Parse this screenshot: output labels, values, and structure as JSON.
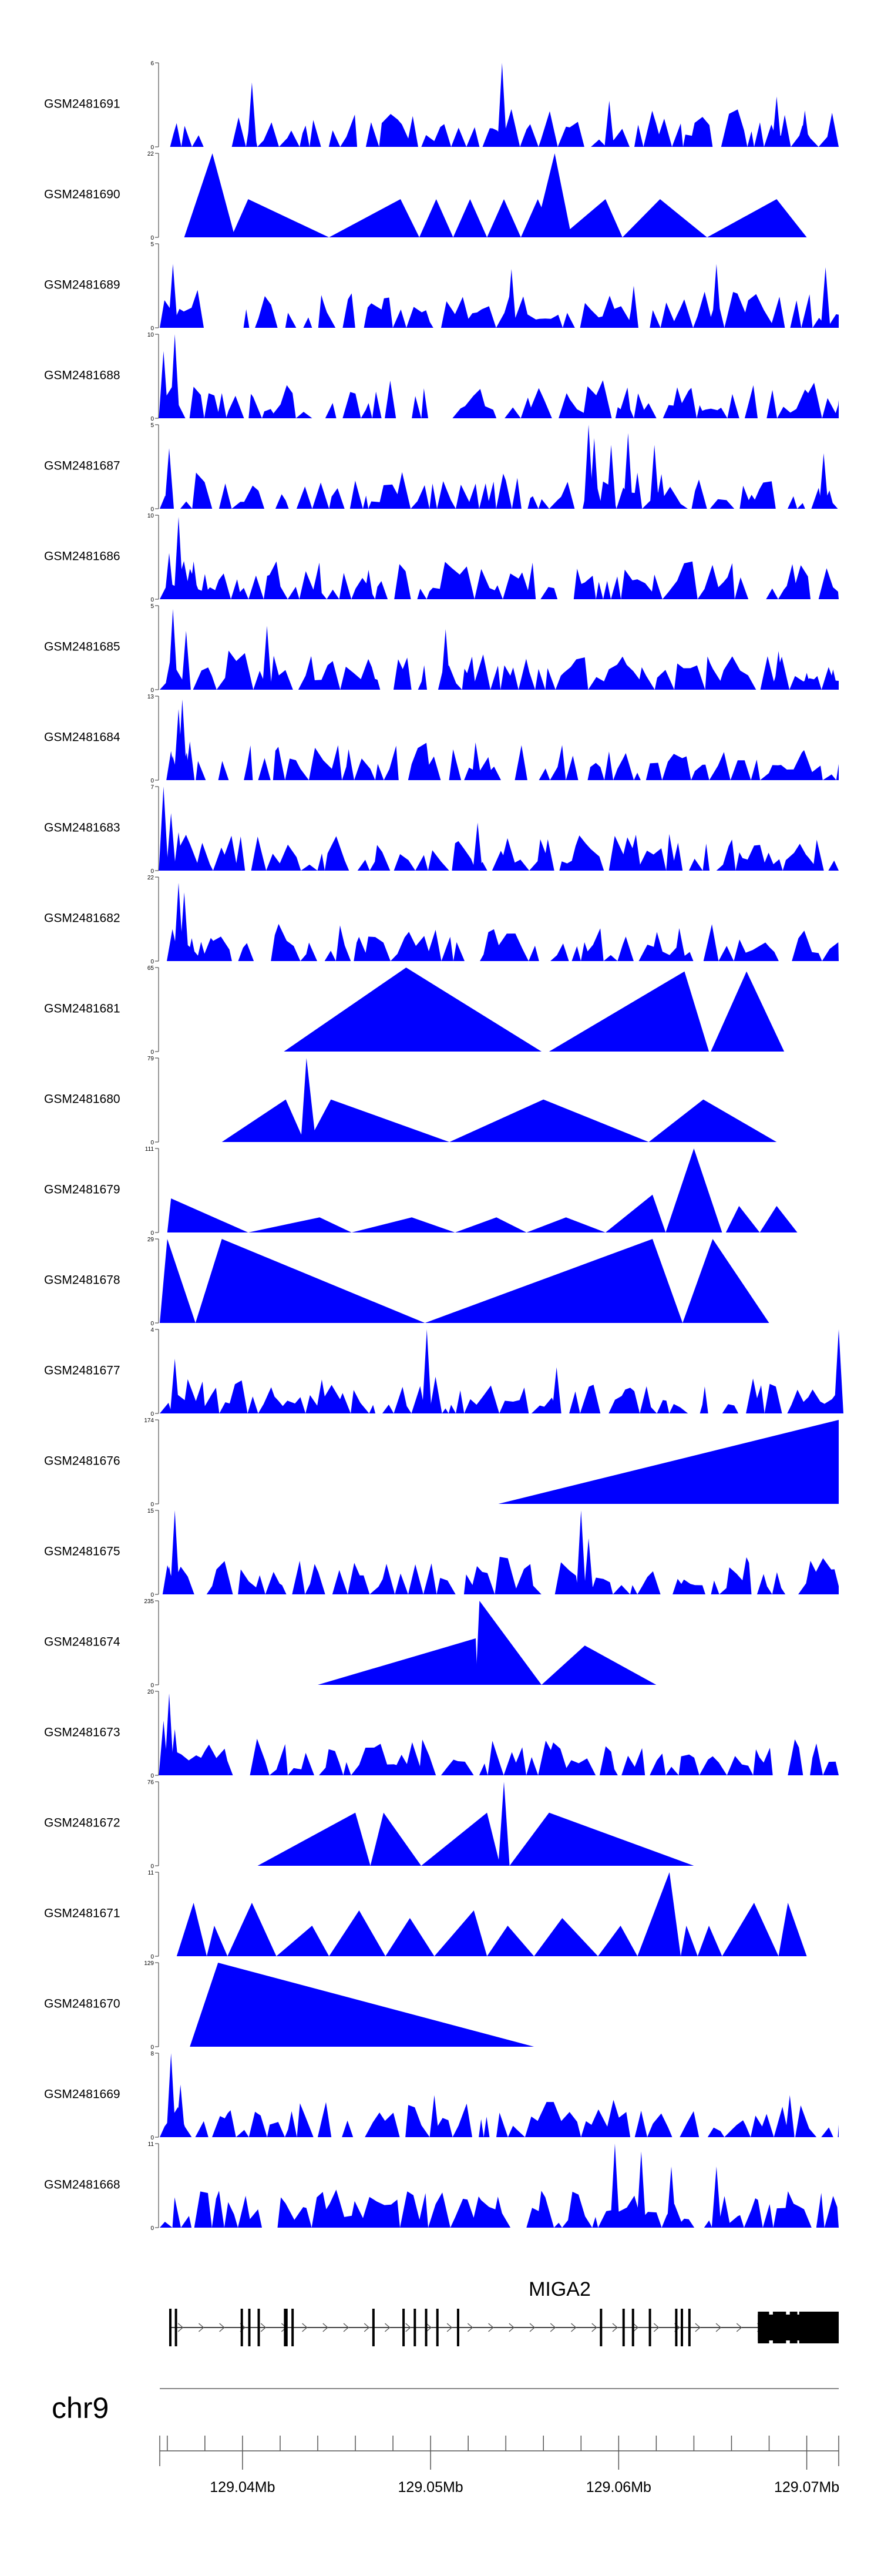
{
  "chart_data": {
    "type": "area",
    "chromosome": "chr9",
    "x_range_mb": [
      129.0356,
      129.0717
    ],
    "x_ticks": [
      "129.04Mb",
      "129.05Mb",
      "129.06Mb",
      "129.07Mb"
    ],
    "x_tick_values": [
      129.04,
      129.05,
      129.06,
      129.07
    ],
    "minor_tick_step_mb": 0.002,
    "colors": {
      "fill": "#0000ff",
      "axis": "#555555",
      "gene": "#000000"
    },
    "series": [
      {
        "name": "GSM2481691",
        "ymax": 6,
        "y0": "0",
        "ymaxLabel": "6",
        "style": "noise",
        "peaks": [
          [
            129.0365,
            1.4
          ],
          [
            129.0405,
            4.6
          ],
          [
            129.0538,
            6.0
          ],
          [
            129.0595,
            3.3
          ],
          [
            129.0684,
            3.6
          ],
          [
            129.0699,
            2.6
          ]
        ]
      },
      {
        "name": "GSM2481690",
        "ymax": 22,
        "y0": "0",
        "ymaxLabel": "22",
        "style": "tri",
        "peaks": [
          [
            129.0369,
            129.0384,
            129.0396,
            22
          ],
          [
            129.0394,
            129.0403,
            129.0446,
            10
          ],
          [
            129.0446,
            129.0484,
            129.0494,
            10
          ],
          [
            129.0494,
            129.0503,
            129.0512,
            10
          ],
          [
            129.0512,
            129.0521,
            129.053,
            10
          ],
          [
            129.053,
            129.0539,
            129.0548,
            10
          ],
          [
            129.0548,
            129.0557,
            129.0566,
            10
          ],
          [
            129.0555,
            129.0566,
            129.0575,
            22
          ],
          [
            129.0569,
            129.0593,
            129.0602,
            10
          ],
          [
            129.0602,
            129.0622,
            129.0647,
            10
          ],
          [
            129.0647,
            129.0684,
            129.07,
            10
          ]
        ]
      },
      {
        "name": "GSM2481689",
        "ymax": 5,
        "y0": "0",
        "ymaxLabel": "5",
        "style": "noise",
        "peaks": [
          [
            129.0363,
            3.8
          ],
          [
            129.0543,
            3.5
          ],
          [
            129.0608,
            2.5
          ],
          [
            129.0652,
            3.8
          ],
          [
            129.071,
            3.6
          ]
        ]
      },
      {
        "name": "GSM2481688",
        "ymax": 10,
        "y0": "0",
        "ymaxLabel": "10",
        "style": "noise",
        "peaks": [
          [
            129.0358,
            8.0
          ],
          [
            129.0364,
            10.0
          ],
          [
            129.0389,
            3.0
          ],
          [
            129.0425,
            3.0
          ]
        ]
      },
      {
        "name": "GSM2481687",
        "ymax": 5,
        "y0": "0",
        "ymaxLabel": "5",
        "style": "noise",
        "peaks": [
          [
            129.0361,
            3.6
          ],
          [
            129.0584,
            5.0
          ],
          [
            129.0587,
            4.2
          ],
          [
            129.0596,
            3.8
          ],
          [
            129.0605,
            4.5
          ],
          [
            129.0619,
            3.8
          ],
          [
            129.0709,
            3.3
          ]
        ]
      },
      {
        "name": "GSM2481686",
        "ymax": 10,
        "y0": "0",
        "ymaxLabel": "10",
        "style": "noise",
        "peaks": [
          [
            129.0361,
            5.5
          ],
          [
            129.0366,
            9.8
          ],
          [
            129.0374,
            4.5
          ],
          [
            129.038,
            3.0
          ],
          [
            129.0467,
            3.5
          ]
        ]
      },
      {
        "name": "GSM2481685",
        "ymax": 5,
        "y0": "0",
        "ymaxLabel": "5",
        "style": "noise",
        "peaks": [
          [
            129.0363,
            4.8
          ],
          [
            129.037,
            3.5
          ],
          [
            129.0413,
            3.8
          ],
          [
            129.0508,
            3.6
          ],
          [
            129.0685,
            2.3
          ],
          [
            129.07,
            1.0
          ],
          [
            129.0714,
            1.2
          ]
        ]
      },
      {
        "name": "GSM2481684",
        "ymax": 13,
        "y0": "0",
        "ymaxLabel": "13",
        "style": "noise",
        "peaks": [
          [
            129.0362,
            4.5
          ],
          [
            129.0366,
            11.0
          ],
          [
            129.0368,
            12.5
          ],
          [
            129.0372,
            6.0
          ]
        ]
      },
      {
        "name": "GSM2481683",
        "ymax": 7,
        "y0": "0",
        "ymaxLabel": "7",
        "style": "noise",
        "peaks": [
          [
            129.0358,
            7.0
          ],
          [
            129.0362,
            4.8
          ],
          [
            129.0366,
            3.2
          ],
          [
            129.0525,
            4.0
          ]
        ]
      },
      {
        "name": "GSM2481682",
        "ymax": 22,
        "y0": "0",
        "ymaxLabel": "22",
        "style": "noise",
        "peaks": [
          [
            129.0363,
            7.0
          ],
          [
            129.0366,
            20.5
          ],
          [
            129.0369,
            18.0
          ],
          [
            129.0373,
            6.0
          ]
        ]
      },
      {
        "name": "GSM2481681",
        "ymax": 65,
        "y0": "0",
        "ymaxLabel": "65",
        "style": "tri",
        "peaks": [
          [
            129.0422,
            129.0487,
            129.0559,
            65
          ],
          [
            129.0563,
            129.0635,
            129.0648,
            62
          ],
          [
            129.0649,
            129.0668,
            129.0688,
            62
          ]
        ]
      },
      {
        "name": "GSM2481680",
        "ymax": 79,
        "y0": "0",
        "ymaxLabel": "79",
        "style": "tri",
        "peaks": [
          [
            129.0389,
            129.0423,
            129.0433,
            40
          ],
          [
            129.0431,
            129.0434,
            129.0439,
            79
          ],
          [
            129.0435,
            129.0447,
            129.051,
            40
          ],
          [
            129.051,
            129.056,
            129.0616,
            40
          ],
          [
            129.0616,
            129.0645,
            129.0684,
            40
          ]
        ]
      },
      {
        "name": "GSM2481679",
        "ymax": 111,
        "y0": "0",
        "ymaxLabel": "111",
        "style": "tri",
        "peaks": [
          [
            129.036,
            129.0362,
            129.0403,
            45
          ],
          [
            129.0403,
            129.0441,
            129.0458,
            20
          ],
          [
            129.0458,
            129.049,
            129.0513,
            20
          ],
          [
            129.0513,
            129.0535,
            129.0551,
            20
          ],
          [
            129.0551,
            129.0572,
            129.0593,
            20
          ],
          [
            129.0593,
            129.0618,
            129.0625,
            50
          ],
          [
            129.0625,
            129.064,
            129.0655,
            111
          ],
          [
            129.0657,
            129.0664,
            129.0675,
            35
          ],
          [
            129.0675,
            129.0684,
            129.0695,
            35
          ]
        ]
      },
      {
        "name": "GSM2481678",
        "ymax": 29,
        "y0": "0",
        "ymaxLabel": "29",
        "style": "tri",
        "peaks": [
          [
            129.0356,
            129.036,
            129.0375,
            29
          ],
          [
            129.0375,
            129.0389,
            129.0497,
            29
          ],
          [
            129.0497,
            129.0618,
            129.0634,
            29
          ],
          [
            129.0634,
            129.065,
            129.068,
            29
          ]
        ]
      },
      {
        "name": "GSM2481677",
        "ymax": 4,
        "y0": "0",
        "ymaxLabel": "4",
        "style": "noise",
        "peaks": [
          [
            129.0364,
            2.6
          ],
          [
            129.0498,
            4.0
          ],
          [
            129.0567,
            2.2
          ],
          [
            129.0717,
            4.0
          ]
        ]
      },
      {
        "name": "GSM2481676",
        "ymax": 174,
        "y0": "0",
        "ymaxLabel": "174",
        "style": "tri",
        "peaks": [
          [
            129.0536,
            129.0717,
            129.0717,
            174
          ]
        ]
      },
      {
        "name": "GSM2481675",
        "ymax": 15,
        "y0": "0",
        "ymaxLabel": "15",
        "style": "noise",
        "peaks": [
          [
            129.0361,
            5.0
          ],
          [
            129.0364,
            15.0
          ],
          [
            129.058,
            15.0
          ],
          [
            129.0584,
            10.0
          ]
        ]
      },
      {
        "name": "GSM2481674",
        "ymax": 235,
        "y0": "0",
        "ymaxLabel": "235",
        "style": "tri",
        "peaks": [
          [
            129.044,
            129.0524,
            129.0525,
            130
          ],
          [
            129.0524,
            129.0526,
            129.0559,
            235
          ],
          [
            129.0559,
            129.0582,
            129.062,
            110
          ]
        ]
      },
      {
        "name": "GSM2481673",
        "ymax": 20,
        "y0": "0",
        "ymaxLabel": "20",
        "style": "noise",
        "peaks": [
          [
            129.0358,
            13.0
          ],
          [
            129.0361,
            19.5
          ],
          [
            129.0364,
            11.0
          ]
        ]
      },
      {
        "name": "GSM2481672",
        "ymax": 76,
        "y0": "0",
        "ymaxLabel": "76",
        "style": "tri",
        "peaks": [
          [
            129.0408,
            129.046,
            129.0468,
            48
          ],
          [
            129.0468,
            129.0475,
            129.0495,
            48
          ],
          [
            129.0495,
            129.053,
            129.0537,
            48
          ],
          [
            129.0536,
            129.0539,
            129.0542,
            76
          ],
          [
            129.0542,
            129.0563,
            129.064,
            48
          ]
        ]
      },
      {
        "name": "GSM2481671",
        "ymax": 11,
        "y0": "0",
        "ymaxLabel": "11",
        "style": "tri",
        "peaks": [
          [
            129.0365,
            129.0374,
            129.0381,
            7
          ],
          [
            129.0381,
            129.0385,
            129.0392,
            4
          ],
          [
            129.0392,
            129.0405,
            129.0418,
            7
          ],
          [
            129.0418,
            129.0437,
            129.0446,
            4
          ],
          [
            129.0446,
            129.0462,
            129.0476,
            6
          ],
          [
            129.0476,
            129.0489,
            129.0502,
            5
          ],
          [
            129.0502,
            129.0523,
            129.053,
            6
          ],
          [
            129.053,
            129.0541,
            129.0555,
            4
          ],
          [
            129.0555,
            129.057,
            129.0589,
            5
          ],
          [
            129.0589,
            129.0601,
            129.061,
            4
          ],
          [
            129.061,
            129.0627,
            129.0633,
            11
          ],
          [
            129.0633,
            129.0636,
            129.0642,
            4
          ],
          [
            129.0642,
            129.0648,
            129.0655,
            4
          ],
          [
            129.0655,
            129.0672,
            129.0685,
            7
          ],
          [
            129.0685,
            129.069,
            129.07,
            7
          ]
        ]
      },
      {
        "name": "GSM2481670",
        "ymax": 129,
        "y0": "0",
        "ymaxLabel": "129",
        "style": "tri",
        "peaks": [
          [
            129.0372,
            129.0387,
            129.0555,
            129
          ]
        ]
      },
      {
        "name": "GSM2481669",
        "ymax": 8,
        "y0": "0",
        "ymaxLabel": "8",
        "style": "noise",
        "peaks": [
          [
            129.0362,
            8.0
          ],
          [
            129.0367,
            5.0
          ],
          [
            129.0502,
            4.0
          ],
          [
            129.0691,
            4.0
          ]
        ]
      },
      {
        "name": "GSM2481668",
        "ymax": 11,
        "y0": "0",
        "ymaxLabel": "11",
        "style": "noise",
        "peaks": [
          [
            129.0598,
            11.0
          ],
          [
            129.0612,
            10.0
          ],
          [
            129.0628,
            8.0
          ],
          [
            129.0652,
            8.0
          ]
        ]
      }
    ],
    "gene": {
      "name": "MIGA2",
      "strand": "+",
      "start": 129.0361,
      "end": 129.0717,
      "exons": [
        [
          129.0361,
          129.0362
        ],
        [
          129.0364,
          129.0365
        ],
        [
          129.0399,
          129.04
        ],
        [
          129.0403,
          129.0404
        ],
        [
          129.0408,
          129.0409
        ],
        [
          129.0422,
          129.0424
        ],
        [
          129.0426,
          129.0427
        ],
        [
          129.0469,
          129.047
        ],
        [
          129.0485,
          129.0486
        ],
        [
          129.0491,
          129.0492
        ],
        [
          129.0497,
          129.0498
        ],
        [
          129.0503,
          129.0504
        ],
        [
          129.0514,
          129.0515
        ],
        [
          129.059,
          129.0591
        ],
        [
          129.0602,
          129.0603
        ],
        [
          129.0607,
          129.0608
        ],
        [
          129.0616,
          129.0617
        ],
        [
          129.063,
          129.0631
        ],
        [
          129.0633,
          129.0634
        ],
        [
          129.0637,
          129.0638
        ],
        [
          129.0674,
          129.068
        ],
        [
          129.0682,
          129.0689
        ],
        [
          129.0691,
          129.0695
        ],
        [
          129.0696,
          129.0717
        ]
      ]
    }
  }
}
